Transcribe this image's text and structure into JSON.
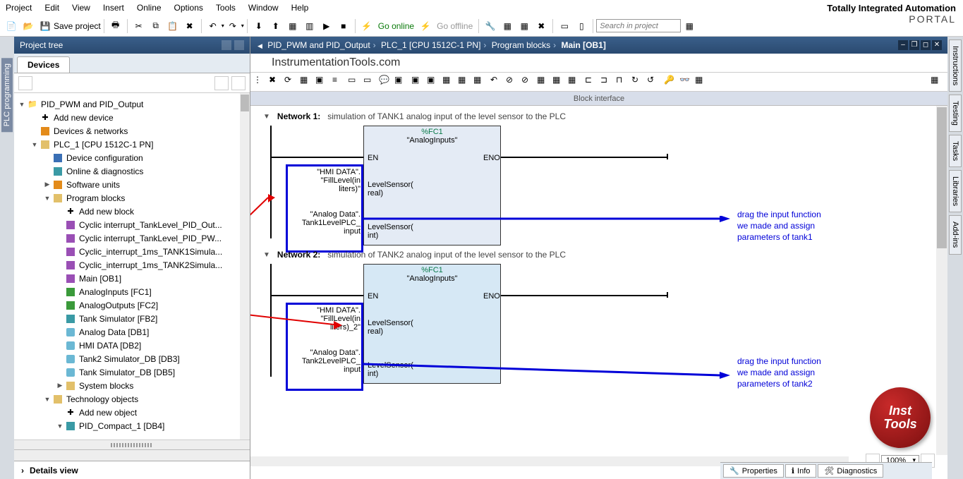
{
  "brand": {
    "line1": "Totally Integrated Automation",
    "line2": "PORTAL"
  },
  "menu": [
    "Project",
    "Edit",
    "View",
    "Insert",
    "Online",
    "Options",
    "Tools",
    "Window",
    "Help"
  ],
  "toolbar": {
    "save_label": "Save project",
    "go_online": "Go online",
    "go_offline": "Go offline",
    "search_placeholder": "Search in project"
  },
  "leftrail": {
    "label": "PLC programming"
  },
  "project_tree": {
    "title": "Project tree",
    "tab": "Devices",
    "root": "PID_PWM and PID_Output",
    "items": [
      {
        "indent": 1,
        "icon": "add",
        "label": "Add new device"
      },
      {
        "indent": 1,
        "icon": "net",
        "label": "Devices & networks"
      },
      {
        "indent": 1,
        "icon": "plc",
        "label": "PLC_1 [CPU 1512C-1 PN]",
        "expand": "▼"
      },
      {
        "indent": 2,
        "icon": "cfg",
        "label": "Device configuration"
      },
      {
        "indent": 2,
        "icon": "diag",
        "label": "Online & diagnostics"
      },
      {
        "indent": 2,
        "icon": "sw",
        "label": "Software units",
        "expand": "▶"
      },
      {
        "indent": 2,
        "icon": "folder",
        "label": "Program blocks",
        "expand": "▼"
      },
      {
        "indent": 3,
        "icon": "add",
        "label": "Add new block"
      },
      {
        "indent": 3,
        "icon": "ob-p",
        "label": "Cyclic interrupt_TankLevel_PID_Out..."
      },
      {
        "indent": 3,
        "icon": "ob-p",
        "label": "Cyclic interrupt_TankLevel_PID_PW..."
      },
      {
        "indent": 3,
        "icon": "ob-p",
        "label": "Cyclic_interrupt_1ms_TANK1Simula..."
      },
      {
        "indent": 3,
        "icon": "ob-p",
        "label": "Cyclic_interrupt_1ms_TANK2Simula..."
      },
      {
        "indent": 3,
        "icon": "ob-p",
        "label": "Main [OB1]"
      },
      {
        "indent": 3,
        "icon": "fc-g",
        "label": "AnalogInputs [FC1]"
      },
      {
        "indent": 3,
        "icon": "fc-g",
        "label": "AnalogOutputs [FC2]"
      },
      {
        "indent": 3,
        "icon": "fb-t",
        "label": "Tank Simulator [FB2]"
      },
      {
        "indent": 3,
        "icon": "db",
        "label": "Analog Data [DB1]"
      },
      {
        "indent": 3,
        "icon": "db",
        "label": "HMI DATA [DB2]"
      },
      {
        "indent": 3,
        "icon": "db",
        "label": "Tank2 Simulator_DB [DB3]"
      },
      {
        "indent": 3,
        "icon": "db",
        "label": "Tank Simulator_DB [DB5]"
      },
      {
        "indent": 3,
        "icon": "folder",
        "label": "System blocks",
        "expand": "▶"
      },
      {
        "indent": 2,
        "icon": "tech",
        "label": "Technology objects",
        "expand": "▼"
      },
      {
        "indent": 3,
        "icon": "add",
        "label": "Add new object"
      },
      {
        "indent": 3,
        "icon": "pid",
        "label": "PID_Compact_1 [DB4]",
        "expand": "▼"
      }
    ],
    "details": "Details view"
  },
  "editor": {
    "breadcrumbs": [
      "PID_PWM and PID_Output",
      "PLC_1 [CPU 1512C-1 PN]",
      "Program blocks",
      "Main [OB1]"
    ],
    "watermark": "InstrumentationTools.com",
    "block_interface": "Block interface",
    "zoom": "100%",
    "networks": [
      {
        "title": "Network 1:",
        "comment": "simulation of TANK1 analog input of the level sensor to the PLC",
        "block": {
          "fcn": "%FC1",
          "name": "\"AnalogInputs\"",
          "en": "EN",
          "eno": "ENO",
          "left1": "\"HMI DATA\".\n\"FillLevel(in\nliters)\"",
          "pin1": "LevelSensor(\nreal)",
          "left2": "\"Analog Data\".\nTank1LevelPLC_\ninput",
          "pin2": "LevelSensor(\nint)"
        },
        "annotation": "drag the input function\nwe made and assign\nparameters of tank1"
      },
      {
        "title": "Network 2:",
        "comment": "simulation of TANK2 analog input of the level sensor to the PLC",
        "block": {
          "fcn": "%FC1",
          "name": "\"AnalogInputs\"",
          "en": "EN",
          "eno": "ENO",
          "left1": "\"HMI DATA\".\n\"FillLevel(in\nliters)_2\"",
          "pin1": "LevelSensor(\nreal)",
          "left2": "\"Analog Data\".\nTank2LevelPLC_\ninput",
          "pin2": "LevelSensor(\nint)"
        },
        "annotation": "drag the input function\nwe made and assign\nparameters of tank2"
      }
    ]
  },
  "right_tabs": [
    "Instructions",
    "Testing",
    "Tasks",
    "Libraries",
    "Add-ins"
  ],
  "footer_tabs": {
    "properties": "Properties",
    "info": "Info",
    "diagnostics": "Diagnostics"
  },
  "badge": {
    "l1": "Inst",
    "l2": "Tools"
  },
  "colors": {
    "accent": "#0000d8",
    "red": "#e00000",
    "green": "#0a7a4a"
  }
}
